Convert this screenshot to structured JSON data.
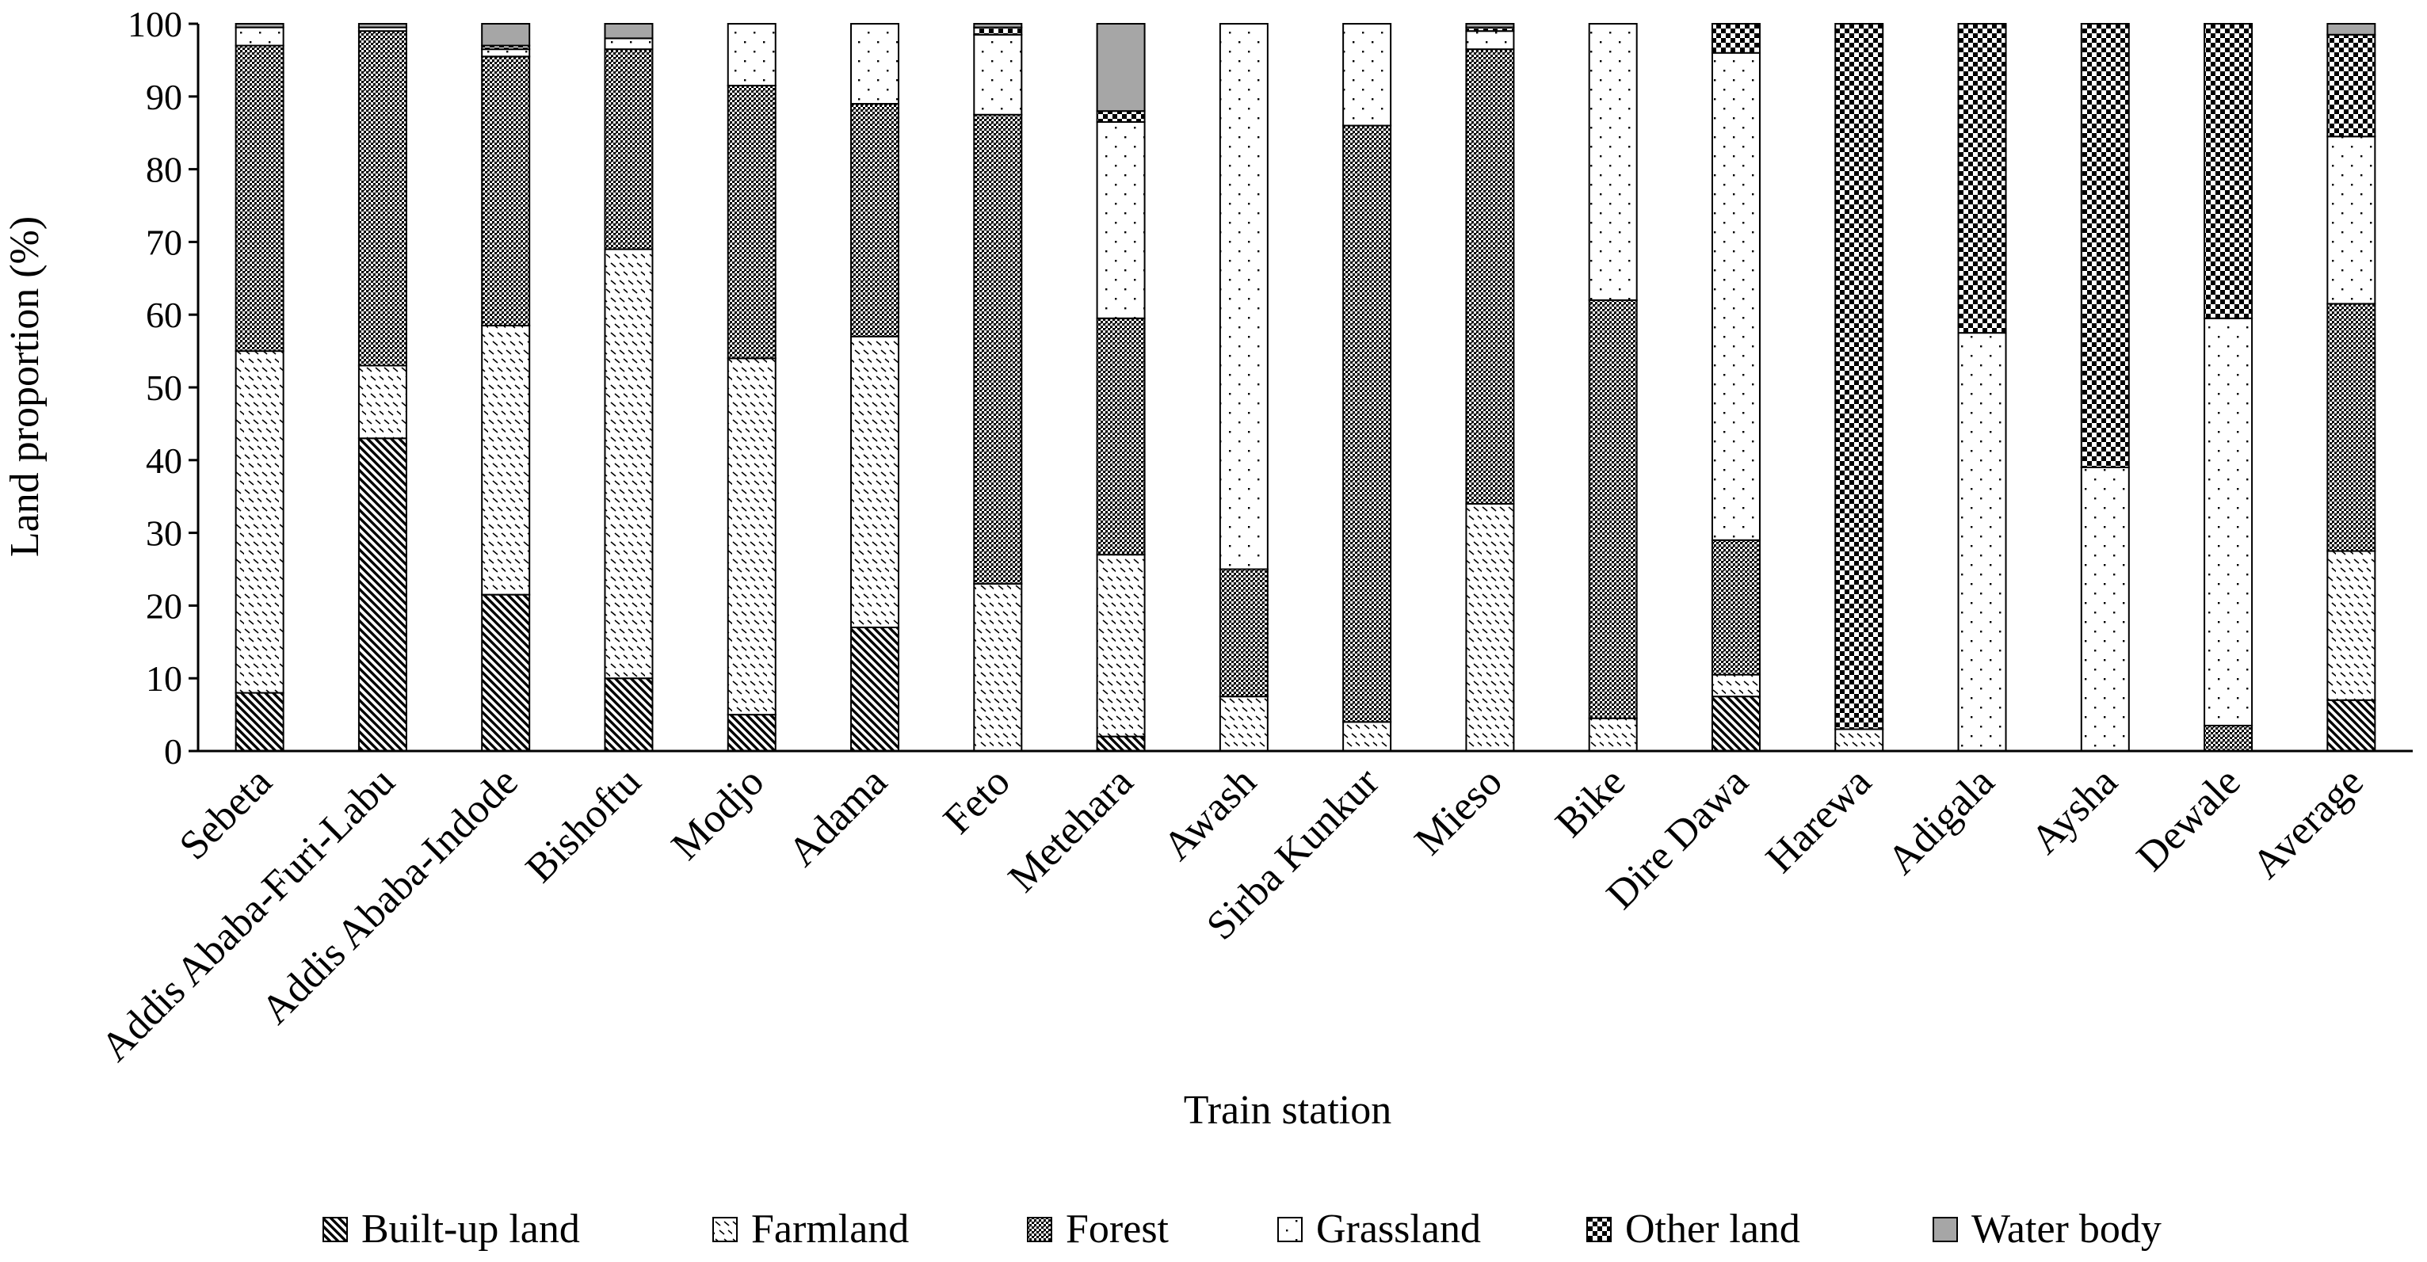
{
  "chart_data": {
    "type": "bar",
    "stacked": true,
    "xlabel": "Train station",
    "ylabel": "Land proportion (%)",
    "ylim": [
      0,
      100
    ],
    "yticks": [
      0,
      10,
      20,
      30,
      40,
      50,
      60,
      70,
      80,
      90,
      100
    ],
    "grid": false,
    "legend_position": "bottom",
    "categories": [
      "Sebeta",
      "Addis Ababa-Furi-Labu",
      "Addis Ababa-Indode",
      "Bishoftu",
      "Modjo",
      "Adama",
      "Feto",
      "Metehara",
      "Awash",
      "Sirba Kunkur",
      "Mieso",
      "Bike",
      "Dire Dawa",
      "Harewa",
      "Adigala",
      "Aysha",
      "Dewale",
      "Average"
    ],
    "series": [
      {
        "name": "Built-up land",
        "pattern": "diagonal-hatch",
        "values": [
          8,
          43,
          21.5,
          10,
          5,
          17,
          0,
          2,
          0,
          0,
          0,
          0,
          7.5,
          0,
          0,
          0,
          0,
          7
        ]
      },
      {
        "name": "Farmland",
        "pattern": "dash-pattern",
        "values": [
          47,
          10,
          37,
          59,
          49,
          40,
          23,
          25,
          7.5,
          4,
          34,
          4.5,
          3,
          3,
          0,
          0,
          0,
          20.5
        ]
      },
      {
        "name": "Forest",
        "pattern": "fine-dots",
        "values": [
          42,
          46,
          37,
          27.5,
          37.5,
          32,
          64.5,
          32.5,
          17.5,
          82,
          62.5,
          57.5,
          18.5,
          0,
          0,
          0,
          3.5,
          34
        ]
      },
      {
        "name": "Grassland",
        "pattern": "sparse-dots",
        "values": [
          2.5,
          0.5,
          1,
          1.5,
          8.5,
          11,
          11,
          27,
          75,
          14,
          2.5,
          38,
          67,
          0,
          57.5,
          39,
          56,
          23
        ]
      },
      {
        "name": "Other land",
        "pattern": "checker",
        "values": [
          0,
          0,
          0.5,
          0,
          0,
          0,
          1,
          1.5,
          0,
          0,
          0.5,
          0,
          4,
          97,
          42.5,
          61,
          40.5,
          14
        ]
      },
      {
        "name": "Water body",
        "pattern": "solid-gray",
        "values": [
          0.5,
          0.5,
          3,
          2,
          0,
          0,
          0.5,
          12,
          0,
          0,
          0.5,
          0,
          0,
          0,
          0,
          0,
          0,
          1.5
        ]
      }
    ]
  }
}
